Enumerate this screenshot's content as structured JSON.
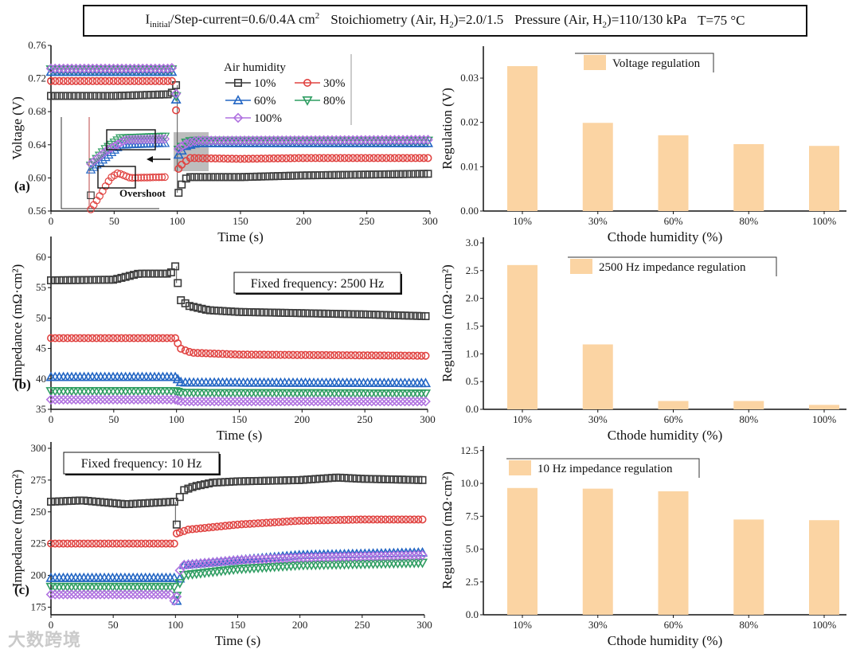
{
  "header": {
    "i": "I",
    "initial_sub": "initial",
    "current": "/Step-current=0.6/0.4A cm",
    "current_sup": "2",
    "stoich": "Stoichiometry (Air, H",
    "stoich_sub": "2",
    "stoich_val": ")=2.0/1.5",
    "pressure": "Pressure (Air, H",
    "pressure_sub": "2",
    "pressure_val": ")=110/130 kPa",
    "temp": "T=75 °C"
  },
  "watermark": "大数跨境",
  "colors": {
    "10%": "#3a3a3a",
    "30%": "#e04341",
    "60%": "#2366c4",
    "80%": "#2f9d62",
    "100%": "#b072e0",
    "bar": "#fbd4a3"
  },
  "chart_data": [
    {
      "id": "a",
      "type": "line",
      "panel_label": "(a)",
      "xlabel": "Time (s)",
      "ylabel": "Voltage (V)",
      "xlim": [
        0,
        300
      ],
      "ylim": [
        0.56,
        0.76
      ],
      "xticks": [
        0,
        50,
        100,
        150,
        200,
        250,
        300
      ],
      "yticks": [
        "0.56",
        "0.60",
        "0.64",
        "0.68",
        "0.72",
        "0.76"
      ],
      "legend": {
        "title": "Air humidity",
        "placement": "top-center"
      },
      "annotation": "Overshoot",
      "series": [
        {
          "name": "10%",
          "marker": "square",
          "points": [
            [
              0,
              0.699
            ],
            [
              50,
              0.699
            ],
            [
              95,
              0.701
            ],
            [
              99,
              0.712
            ],
            [
              101,
              0.582
            ],
            [
              104,
              0.594
            ],
            [
              108,
              0.601
            ],
            [
              150,
              0.601
            ],
            [
              200,
              0.603
            ],
            [
              250,
              0.604
            ],
            [
              300,
              0.605
            ]
          ]
        },
        {
          "name": "30%",
          "marker": "circle",
          "points": [
            [
              0,
              0.717
            ],
            [
              50,
              0.717
            ],
            [
              98,
              0.717
            ],
            [
              101,
              0.611
            ],
            [
              104,
              0.617
            ],
            [
              110,
              0.624
            ],
            [
              150,
              0.623
            ],
            [
              200,
              0.624
            ],
            [
              300,
              0.624
            ]
          ]
        },
        {
          "name": "60%",
          "marker": "triangle-up",
          "points": [
            [
              0,
              0.728
            ],
            [
              98,
              0.728
            ],
            [
              101,
              0.628
            ],
            [
              106,
              0.638
            ],
            [
              115,
              0.642
            ],
            [
              300,
              0.642
            ]
          ]
        },
        {
          "name": "80%",
          "marker": "triangle-down",
          "points": [
            [
              0,
              0.731
            ],
            [
              98,
              0.731
            ],
            [
              101,
              0.634
            ],
            [
              108,
              0.644
            ],
            [
              115,
              0.645
            ],
            [
              300,
              0.645
            ]
          ]
        },
        {
          "name": "100%",
          "marker": "diamond",
          "points": [
            [
              0,
              0.732
            ],
            [
              95,
              0.732
            ],
            [
              98,
              0.735
            ],
            [
              101,
              0.635
            ],
            [
              106,
              0.641
            ],
            [
              115,
              0.645
            ],
            [
              300,
              0.646
            ]
          ]
        }
      ],
      "inset_series": [
        {
          "name": "60%",
          "points": [
            [
              0,
              0.61
            ],
            [
              6,
              0.625
            ],
            [
              12,
              0.64
            ],
            [
              30,
              0.642
            ]
          ]
        },
        {
          "name": "80%",
          "points": [
            [
              0,
              0.615
            ],
            [
              6,
              0.635
            ],
            [
              12,
              0.648
            ],
            [
              30,
              0.65
            ]
          ]
        },
        {
          "name": "100%",
          "points": [
            [
              0,
              0.617
            ],
            [
              6,
              0.632
            ],
            [
              14,
              0.646
            ],
            [
              30,
              0.647
            ]
          ]
        },
        {
          "name": "30%",
          "points": [
            [
              0,
              0.562
            ],
            [
              4,
              0.58
            ],
            [
              8,
              0.6
            ],
            [
              11,
              0.606
            ],
            [
              16,
              0.6
            ],
            [
              30,
              0.601
            ]
          ]
        },
        {
          "name": "10%",
          "points": [
            [
              0,
              0.579
            ]
          ]
        }
      ]
    },
    {
      "id": "b",
      "type": "line",
      "panel_label": "(b)",
      "xlabel": "Time (s)",
      "ylabel": "Impedance (mΩ·cm²)",
      "xlim": [
        0,
        300
      ],
      "ylim": [
        35,
        63.4
      ],
      "xticks": [
        0,
        50,
        100,
        150,
        200,
        250,
        300
      ],
      "yticks": [
        "35",
        "40",
        "45",
        "50",
        "55",
        "60"
      ],
      "annotation": "Fixed frequency: 2500 Hz",
      "series": [
        {
          "name": "10%",
          "marker": "square",
          "points": [
            [
              0,
              56.2
            ],
            [
              50,
              56.3
            ],
            [
              70,
              57.3
            ],
            [
              95,
              57.3
            ],
            [
              99,
              58.5
            ],
            [
              103,
              53.0
            ],
            [
              110,
              52.0
            ],
            [
              125,
              51.3
            ],
            [
              150,
              51.0
            ],
            [
              200,
              50.8
            ],
            [
              250,
              50.6
            ],
            [
              300,
              50.3
            ]
          ]
        },
        {
          "name": "30%",
          "marker": "circle",
          "points": [
            [
              0,
              46.7
            ],
            [
              99,
              46.7
            ],
            [
              103,
              45.0
            ],
            [
              112,
              44.3
            ],
            [
              150,
              44.0
            ],
            [
              300,
              43.8
            ]
          ]
        },
        {
          "name": "60%",
          "marker": "triangle-up",
          "points": [
            [
              0,
              40.3
            ],
            [
              99,
              40.3
            ],
            [
              104,
              39.4
            ],
            [
              300,
              39.3
            ]
          ]
        },
        {
          "name": "80%",
          "marker": "triangle-down",
          "points": [
            [
              0,
              38.0
            ],
            [
              99,
              38.0
            ],
            [
              104,
              37.7
            ],
            [
              300,
              37.6
            ]
          ]
        },
        {
          "name": "100%",
          "marker": "diamond",
          "points": [
            [
              0,
              36.6
            ],
            [
              99,
              36.6
            ],
            [
              104,
              36.3
            ],
            [
              300,
              36.3
            ]
          ]
        }
      ]
    },
    {
      "id": "c",
      "type": "line",
      "panel_label": "(c)",
      "xlabel": "Time (s)",
      "ylabel": "Impedance (mΩ·cm²)",
      "xlim": [
        0,
        300
      ],
      "ylim": [
        169,
        305
      ],
      "xticks": [
        0,
        50,
        100,
        150,
        200,
        250,
        300
      ],
      "yticks": [
        "175",
        "200",
        "225",
        "250",
        "275",
        "300"
      ],
      "annotation": "Fixed frequency: 10 Hz",
      "series": [
        {
          "name": "10%",
          "marker": "square",
          "points": [
            [
              0,
              258
            ],
            [
              25,
              259
            ],
            [
              60,
              256
            ],
            [
              99,
              258
            ],
            [
              101,
              240
            ],
            [
              104,
              266
            ],
            [
              115,
              270
            ],
            [
              130,
              273
            ],
            [
              150,
              274
            ],
            [
              200,
              275
            ],
            [
              230,
              277
            ],
            [
              250,
              276
            ],
            [
              300,
              275
            ]
          ]
        },
        {
          "name": "30%",
          "marker": "circle",
          "points": [
            [
              0,
              225
            ],
            [
              99,
              225
            ],
            [
              101,
              233
            ],
            [
              110,
              236
            ],
            [
              150,
              240
            ],
            [
              200,
              243
            ],
            [
              250,
              244
            ],
            [
              300,
              244
            ]
          ]
        },
        {
          "name": "60%",
          "marker": "triangle-up",
          "points": [
            [
              0,
              198
            ],
            [
              99,
              198
            ],
            [
              101,
              180
            ],
            [
              105,
              208
            ],
            [
              150,
              212
            ],
            [
              200,
              216
            ],
            [
              300,
              218
            ]
          ]
        },
        {
          "name": "80%",
          "marker": "triangle-down",
          "points": [
            [
              0,
              191
            ],
            [
              99,
              191
            ],
            [
              101,
              184
            ],
            [
              105,
              200
            ],
            [
              150,
              205
            ],
            [
              200,
              208
            ],
            [
              300,
              210
            ]
          ]
        },
        {
          "name": "100%",
          "marker": "diamond",
          "points": [
            [
              0,
              185
            ],
            [
              98,
              185
            ],
            [
              100,
              175
            ],
            [
              104,
              208
            ],
            [
              150,
              212
            ],
            [
              200,
              214
            ],
            [
              300,
              216
            ]
          ]
        }
      ]
    },
    {
      "id": "a-bar",
      "type": "bar",
      "xlabel": "Cthode humidity (%)",
      "ylabel": "Regulation (V)",
      "legend": "Voltage regulation",
      "categories": [
        "10%",
        "30%",
        "60%",
        "80%",
        "100%"
      ],
      "values": [
        0.0327,
        0.0199,
        0.0171,
        0.0151,
        0.0147
      ],
      "ylim": [
        0,
        0.0372
      ],
      "yticks": [
        "0.00",
        "0.01",
        "0.02",
        "0.03"
      ]
    },
    {
      "id": "b-bar",
      "type": "bar",
      "xlabel": "Cthode humidity (%)",
      "ylabel": "Regulation (mΩ·cm²)",
      "legend": "2500 Hz impedance regulation",
      "categories": [
        "10%",
        "30%",
        "60%",
        "80%",
        "100%"
      ],
      "values": [
        2.6,
        1.17,
        0.15,
        0.15,
        0.08
      ],
      "ylim": [
        0,
        3.1
      ],
      "yticks": [
        "0.0",
        "0.5",
        "1.0",
        "1.5",
        "2.0",
        "2.5",
        "3.0"
      ]
    },
    {
      "id": "c-bar",
      "type": "bar",
      "xlabel": "Cthode humidity (%)",
      "ylabel": "Regulation (mΩ·cm²)",
      "legend": "10 Hz impedance regulation",
      "categories": [
        "10%",
        "30%",
        "60%",
        "80%",
        "100%"
      ],
      "values": [
        9.65,
        9.6,
        9.4,
        7.25,
        7.2
      ],
      "ylim": [
        0,
        12.85
      ],
      "yticks": [
        "0.0",
        "2.5",
        "5.0",
        "7.5",
        "10.0",
        "12.5"
      ]
    }
  ]
}
